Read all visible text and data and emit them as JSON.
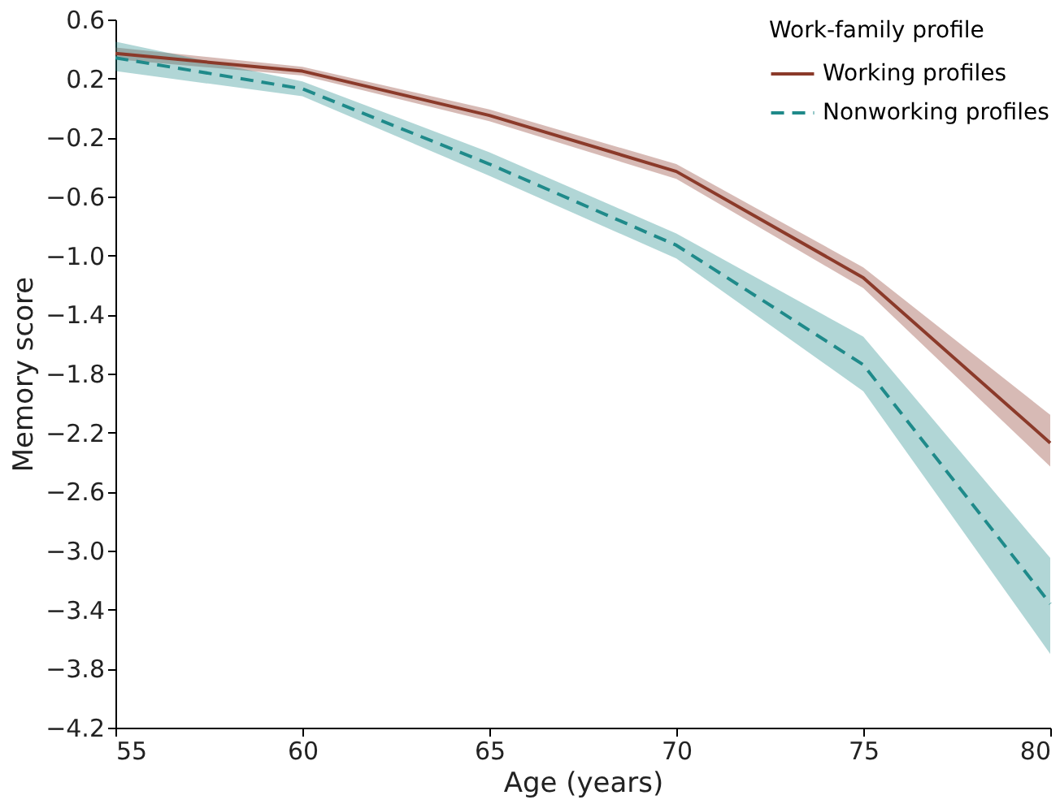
{
  "chart_data": {
    "type": "line",
    "xlabel": "Age (years)",
    "ylabel": "Memory score",
    "legend_title": "Work-family profile",
    "legend": "top right",
    "grid": false,
    "marker": "none",
    "x": [
      55,
      60,
      65,
      70,
      75,
      80
    ],
    "xlim": [
      55,
      80
    ],
    "xticks": [
      55,
      60,
      65,
      70,
      75,
      80
    ],
    "ylim": [
      -4.2,
      0.6
    ],
    "yticks": [
      -4.2,
      -3.8,
      -3.4,
      {
        "value": -3,
        "label": "−3.0"
      },
      -2.6,
      -2.2,
      -1.8,
      -1.4,
      {
        "value": -1,
        "label": "−1.0"
      },
      -0.6,
      -0.2,
      0.2,
      0.6
    ],
    "series": [
      {
        "name": "Working profiles",
        "color": "#8b3a2a",
        "line_style": "solid",
        "values": [
          0.37,
          0.25,
          -0.05,
          -0.43,
          -1.15,
          -2.27
        ],
        "lower": [
          0.33,
          0.22,
          -0.09,
          -0.48,
          -1.22,
          -2.43
        ],
        "upper": [
          0.41,
          0.28,
          -0.01,
          -0.38,
          -1.08,
          -2.08
        ]
      },
      {
        "name": "Nonworking profiles",
        "color": "#1f8a8a",
        "line_style": "dashed",
        "values": [
          0.34,
          0.13,
          -0.38,
          -0.93,
          -1.74,
          -3.36
        ],
        "lower": [
          0.25,
          0.08,
          -0.46,
          -1.02,
          -1.92,
          -3.7
        ],
        "upper": [
          0.45,
          0.18,
          -0.3,
          -0.85,
          -1.55,
          -3.05
        ]
      }
    ]
  }
}
